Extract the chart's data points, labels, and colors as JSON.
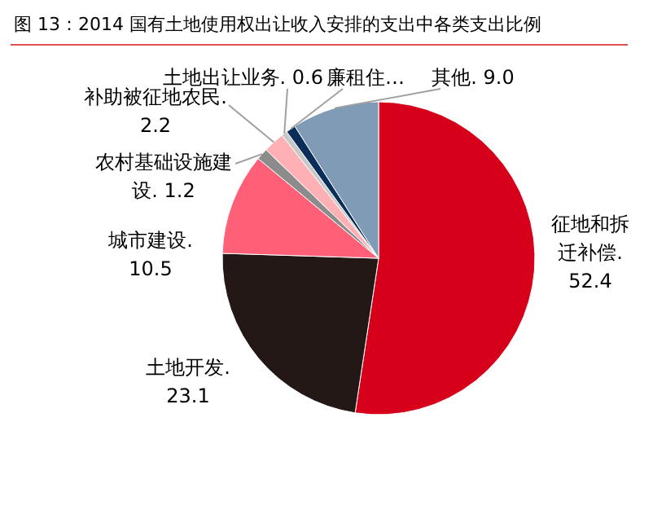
{
  "chart_data": {
    "type": "pie",
    "title": "图 13：2014 国有土地使用权出让收入安排的支出中各类支出比例",
    "categories": [
      "征地和拆迁补偿.",
      "土地开发.",
      "城市建设.",
      "农村基础设施建设.",
      "补助被征地农民.",
      "土地出让业务.",
      "廉租住…",
      "其他."
    ],
    "values": [
      52.4,
      23.1,
      10.5,
      1.2,
      2.2,
      0.6,
      1.0,
      9.0
    ],
    "value_labels": [
      "52.4",
      "23.1",
      "10.5",
      "1.2",
      "2.2",
      "0.6",
      null,
      "9.0"
    ],
    "colors": [
      "#d7001a",
      "#231815",
      "#ff6078",
      "#8c8c8c",
      "#ffb0b5",
      "#c8c8c8",
      "#0a2d5a",
      "#7f9bb5"
    ]
  }
}
